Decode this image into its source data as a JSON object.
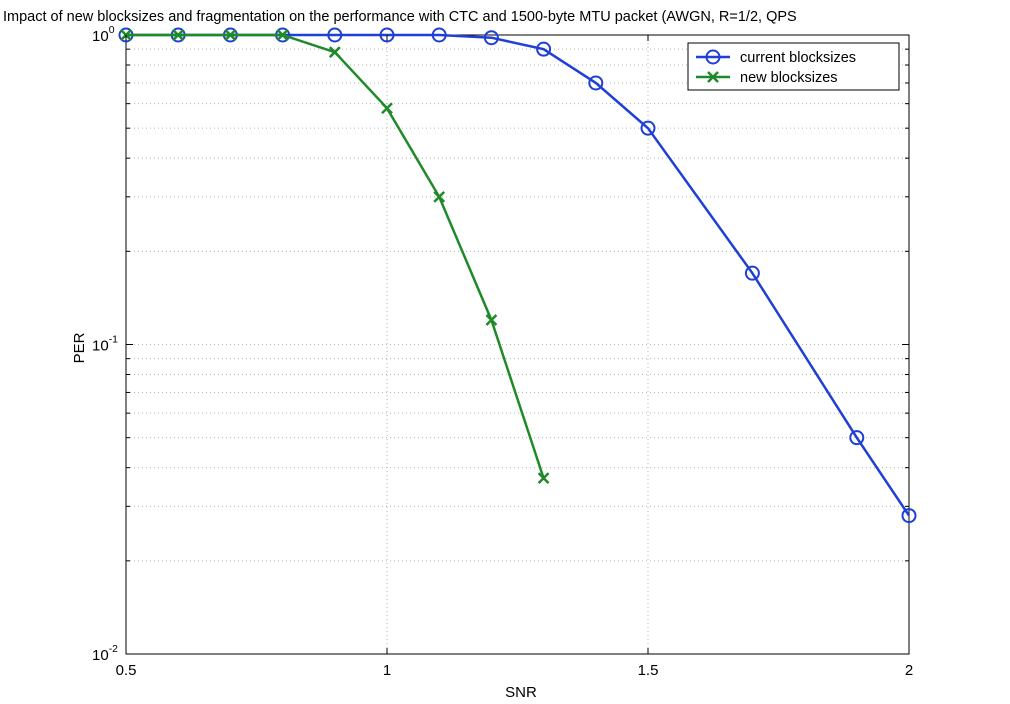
{
  "chart_data": {
    "type": "line",
    "title": "Impact of new blocksizes and fragmentation on the performance with CTC and 1500-byte MTU packet (AWGN, R=1/2, QPS",
    "xlabel": "SNR",
    "ylabel": "PER",
    "xlim": [
      0.5,
      2
    ],
    "ylim": [
      0.01,
      1
    ],
    "yscale": "log",
    "grid": true,
    "legend_position": "top-right",
    "x_ticks": [
      "0.5",
      "1",
      "1.5",
      "2"
    ],
    "x_tick_values": [
      0.5,
      1,
      1.5,
      2
    ],
    "y_ticks": [
      {
        "base": "10",
        "exp": "0",
        "value": 1
      },
      {
        "base": "10",
        "exp": "-1",
        "value": 0.1
      },
      {
        "base": "10",
        "exp": "-2",
        "value": 0.01
      }
    ],
    "series": [
      {
        "name": "current blocksizes",
        "color": "#1f3fd6",
        "marker": "circle",
        "x": [
          0.5,
          0.6,
          0.7,
          0.8,
          0.9,
          1.0,
          1.1,
          1.2,
          1.3,
          1.4,
          1.5,
          1.7,
          1.9,
          2.0
        ],
        "y": [
          1.0,
          1.0,
          1.0,
          1.0,
          1.0,
          1.0,
          1.0,
          0.98,
          0.9,
          0.7,
          0.5,
          0.17,
          0.05,
          0.028
        ]
      },
      {
        "name": "new blocksizes",
        "color": "#1f8a2a",
        "marker": "x",
        "x": [
          0.5,
          0.6,
          0.7,
          0.8,
          0.9,
          1.0,
          1.1,
          1.2,
          1.3
        ],
        "y": [
          1.0,
          1.0,
          1.0,
          1.0,
          0.88,
          0.58,
          0.3,
          0.12,
          0.037
        ]
      }
    ]
  }
}
